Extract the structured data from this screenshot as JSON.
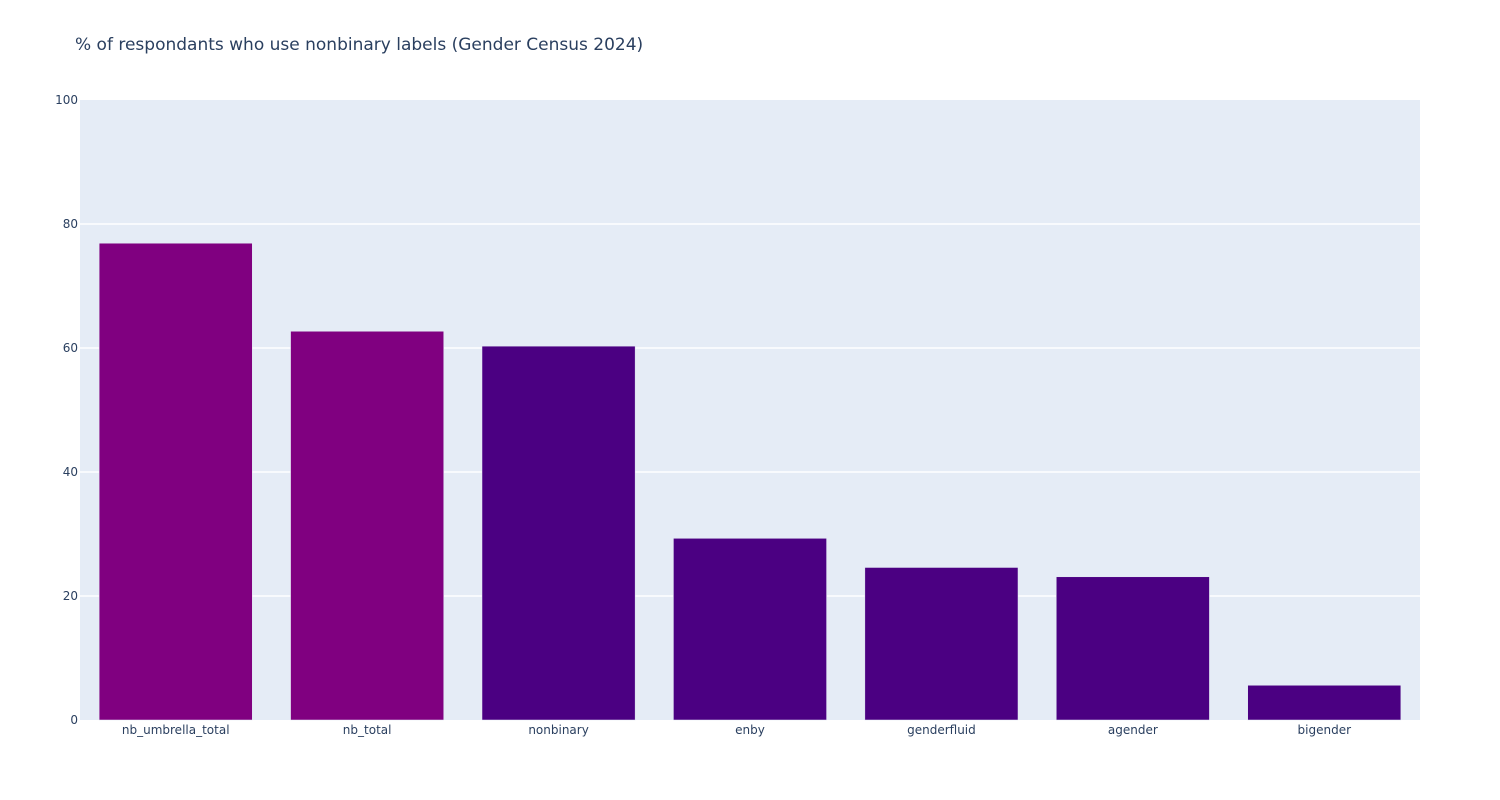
{
  "chart_data": {
    "type": "bar",
    "title": "% of respondants who use nonbinary labels (Gender Census 2024)",
    "xlabel": "",
    "ylabel": "",
    "categories": [
      "nb_umbrella_total",
      "nb_total",
      "nonbinary",
      "enby",
      "genderfluid",
      "agender",
      "bigender"
    ],
    "values": [
      76.9,
      62.7,
      60.3,
      29.3,
      24.6,
      23.1,
      5.6
    ],
    "bar_colors": [
      "#800080",
      "#800080",
      "#4b0082",
      "#4b0082",
      "#4b0082",
      "#4b0082",
      "#4b0082"
    ],
    "ylim": [
      0,
      100
    ],
    "yticks": [
      0,
      20,
      40,
      60,
      80,
      100
    ],
    "grid": true,
    "legend": "none",
    "plot_background": "#e5ecf6",
    "text_color": "#2a3f5f"
  }
}
